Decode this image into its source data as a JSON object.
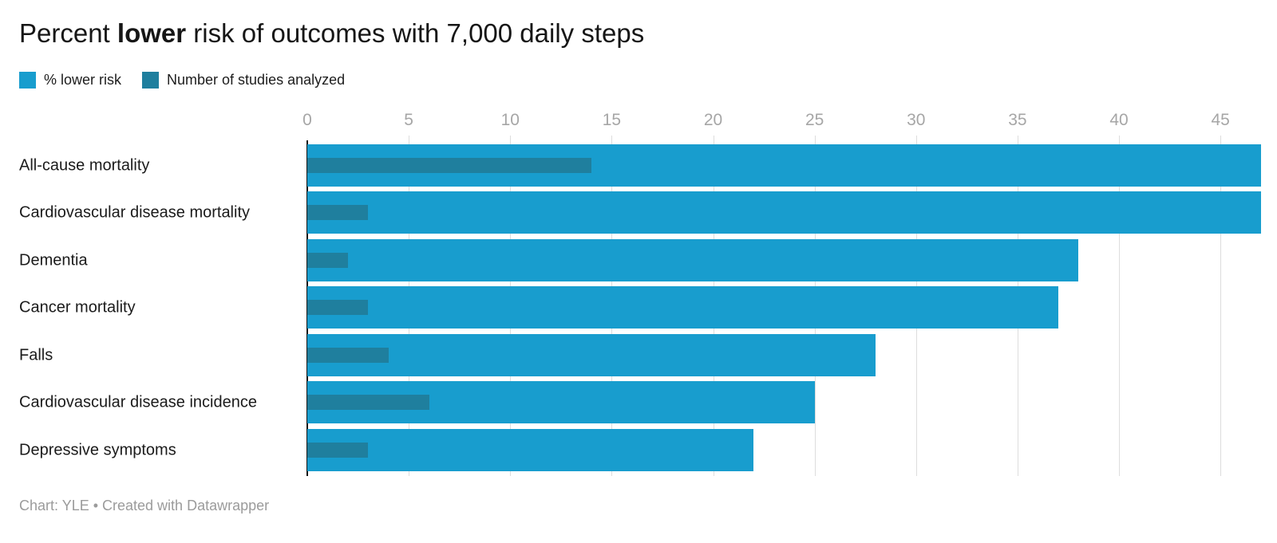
{
  "title": {
    "part1": "Percent",
    "bold": "lower",
    "part2": "risk of outcomes with 7,000 daily steps"
  },
  "legend": [
    {
      "label": "% lower risk",
      "color": "#189dce"
    },
    {
      "label": "Number of studies analyzed",
      "color": "#1f7f9e"
    }
  ],
  "footer": "Chart: YLE • Created with Datawrapper",
  "colors": {
    "bar_main": "#189dce",
    "bar_studies": "#1f7f9e",
    "axis_line": "#141414",
    "gridline": "#dddddd",
    "tick_text": "#a6a6a6",
    "label_text": "#1b1b1b",
    "footer_text": "#9b9b9b"
  },
  "chart_data": {
    "type": "bar",
    "orientation": "horizontal",
    "title": "Percent lower risk of outcomes with 7,000 daily steps",
    "categories": [
      "All-cause mortality",
      "Cardiovascular disease mortality",
      "Dementia",
      "Cancer mortality",
      "Falls",
      "Cardiovascular disease incidence",
      "Depressive symptoms"
    ],
    "series": [
      {
        "name": "% lower risk",
        "values": [
          47,
          47,
          38,
          37,
          28,
          25,
          22
        ],
        "color": "#189dce"
      },
      {
        "name": "Number of studies analyzed",
        "values": [
          14,
          3,
          2,
          3,
          4,
          6,
          3
        ],
        "color": "#1f7f9e"
      }
    ],
    "xlabel": "",
    "ylabel": "",
    "xticks": [
      0,
      5,
      10,
      15,
      20,
      25,
      30,
      35,
      40,
      45
    ],
    "xlim": [
      0,
      47
    ],
    "grid": "vertical",
    "legend_position": "top-left"
  }
}
